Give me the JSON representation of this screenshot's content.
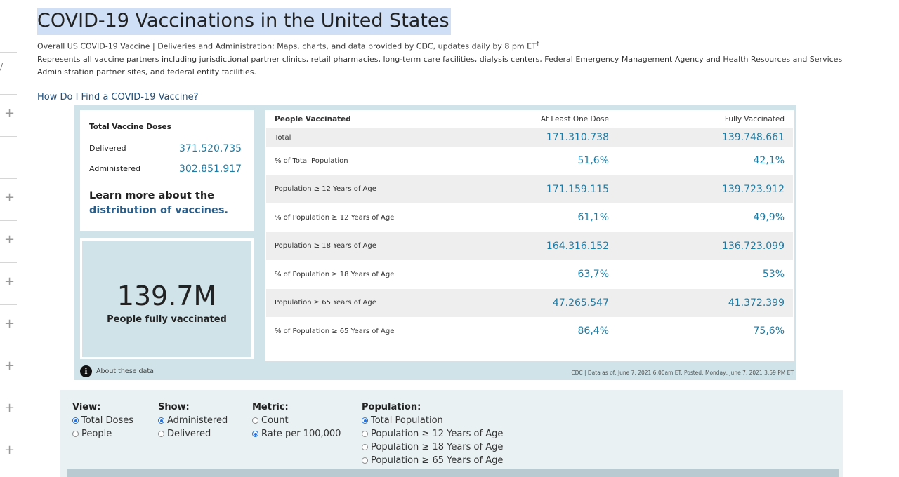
{
  "header": {
    "title": "COVID-19 Vaccinations in the United States",
    "subtitle_line1": "Overall US COVID-19 Vaccine | Deliveries and Administration; Maps, charts, and data provided by CDC, updates daily by 8 pm ET",
    "subtitle_sup": "†",
    "subtitle_line2": "Represents all vaccine partners including jurisdictional partner clinics, retail pharmacies, long-term care facilities, dialysis centers, Federal Emergency Management Agency and Health Resources and Services Administration partner sites, and federal entity facilities.",
    "find_link": "How Do I Find a COVID-19 Vaccine?"
  },
  "doses": {
    "heading": "Total Vaccine Doses",
    "delivered_label": "Delivered",
    "delivered_value": "371.520.735",
    "administered_label": "Administered",
    "administered_value": "302.851.917",
    "learn_text": "Learn more about the",
    "learn_link": "distribution of vaccines."
  },
  "fully": {
    "number": "139.7M",
    "caption": "People fully vaccinated"
  },
  "about": {
    "icon": "i",
    "label": "About these data"
  },
  "table": {
    "headers": [
      "People Vaccinated",
      "At Least One Dose",
      "Fully Vaccinated"
    ],
    "rows": [
      {
        "label": "Total",
        "one": "171.310.738",
        "full": "139.748.661"
      },
      {
        "label": "% of Total Population",
        "one": "51,6%",
        "full": "42,1%"
      },
      {
        "label": "Population ≥ 12 Years of Age",
        "one": "171.159.115",
        "full": "139.723.912"
      },
      {
        "label": "% of Population ≥ 12 Years of Age",
        "one": "61,1%",
        "full": "49,9%"
      },
      {
        "label": "Population ≥ 18 Years of Age",
        "one": "164.316.152",
        "full": "136.723.099"
      },
      {
        "label": "% of Population ≥ 18 Years of Age",
        "one": "63,7%",
        "full": "53%"
      },
      {
        "label": "Population ≥ 65 Years of Age",
        "one": "47.265.547",
        "full": "41.372.399"
      },
      {
        "label": "% of Population ≥ 65 Years of Age",
        "one": "86,4%",
        "full": "75,6%"
      }
    ]
  },
  "source": "CDC | Data as of: June 7, 2021 6:00am ET. Posted: Monday, June 7, 2021 3:59 PM ET",
  "controls": {
    "view": {
      "label": "View:",
      "options": [
        "Total Doses",
        "People"
      ],
      "selected": 0
    },
    "show": {
      "label": "Show:",
      "options": [
        "Administered",
        "Delivered"
      ],
      "selected": 0
    },
    "metric": {
      "label": "Metric:",
      "options": [
        "Count",
        "Rate per 100,000"
      ],
      "selected": 1
    },
    "population": {
      "label": "Population:",
      "options": [
        "Total Population",
        "Population ≥ 12 Years of Age",
        "Population ≥ 18 Years of Age",
        "Population ≥ 65 Years of Age"
      ],
      "selected": 0
    }
  },
  "colors": {
    "accent_value": "#1f7ba3",
    "panel_bg": "#cfe3e8",
    "title_highlight": "#cfe0f6",
    "link": "#2a5e8a"
  },
  "gutter": {
    "plus_glyph": "+",
    "tick_glyph": "/"
  }
}
